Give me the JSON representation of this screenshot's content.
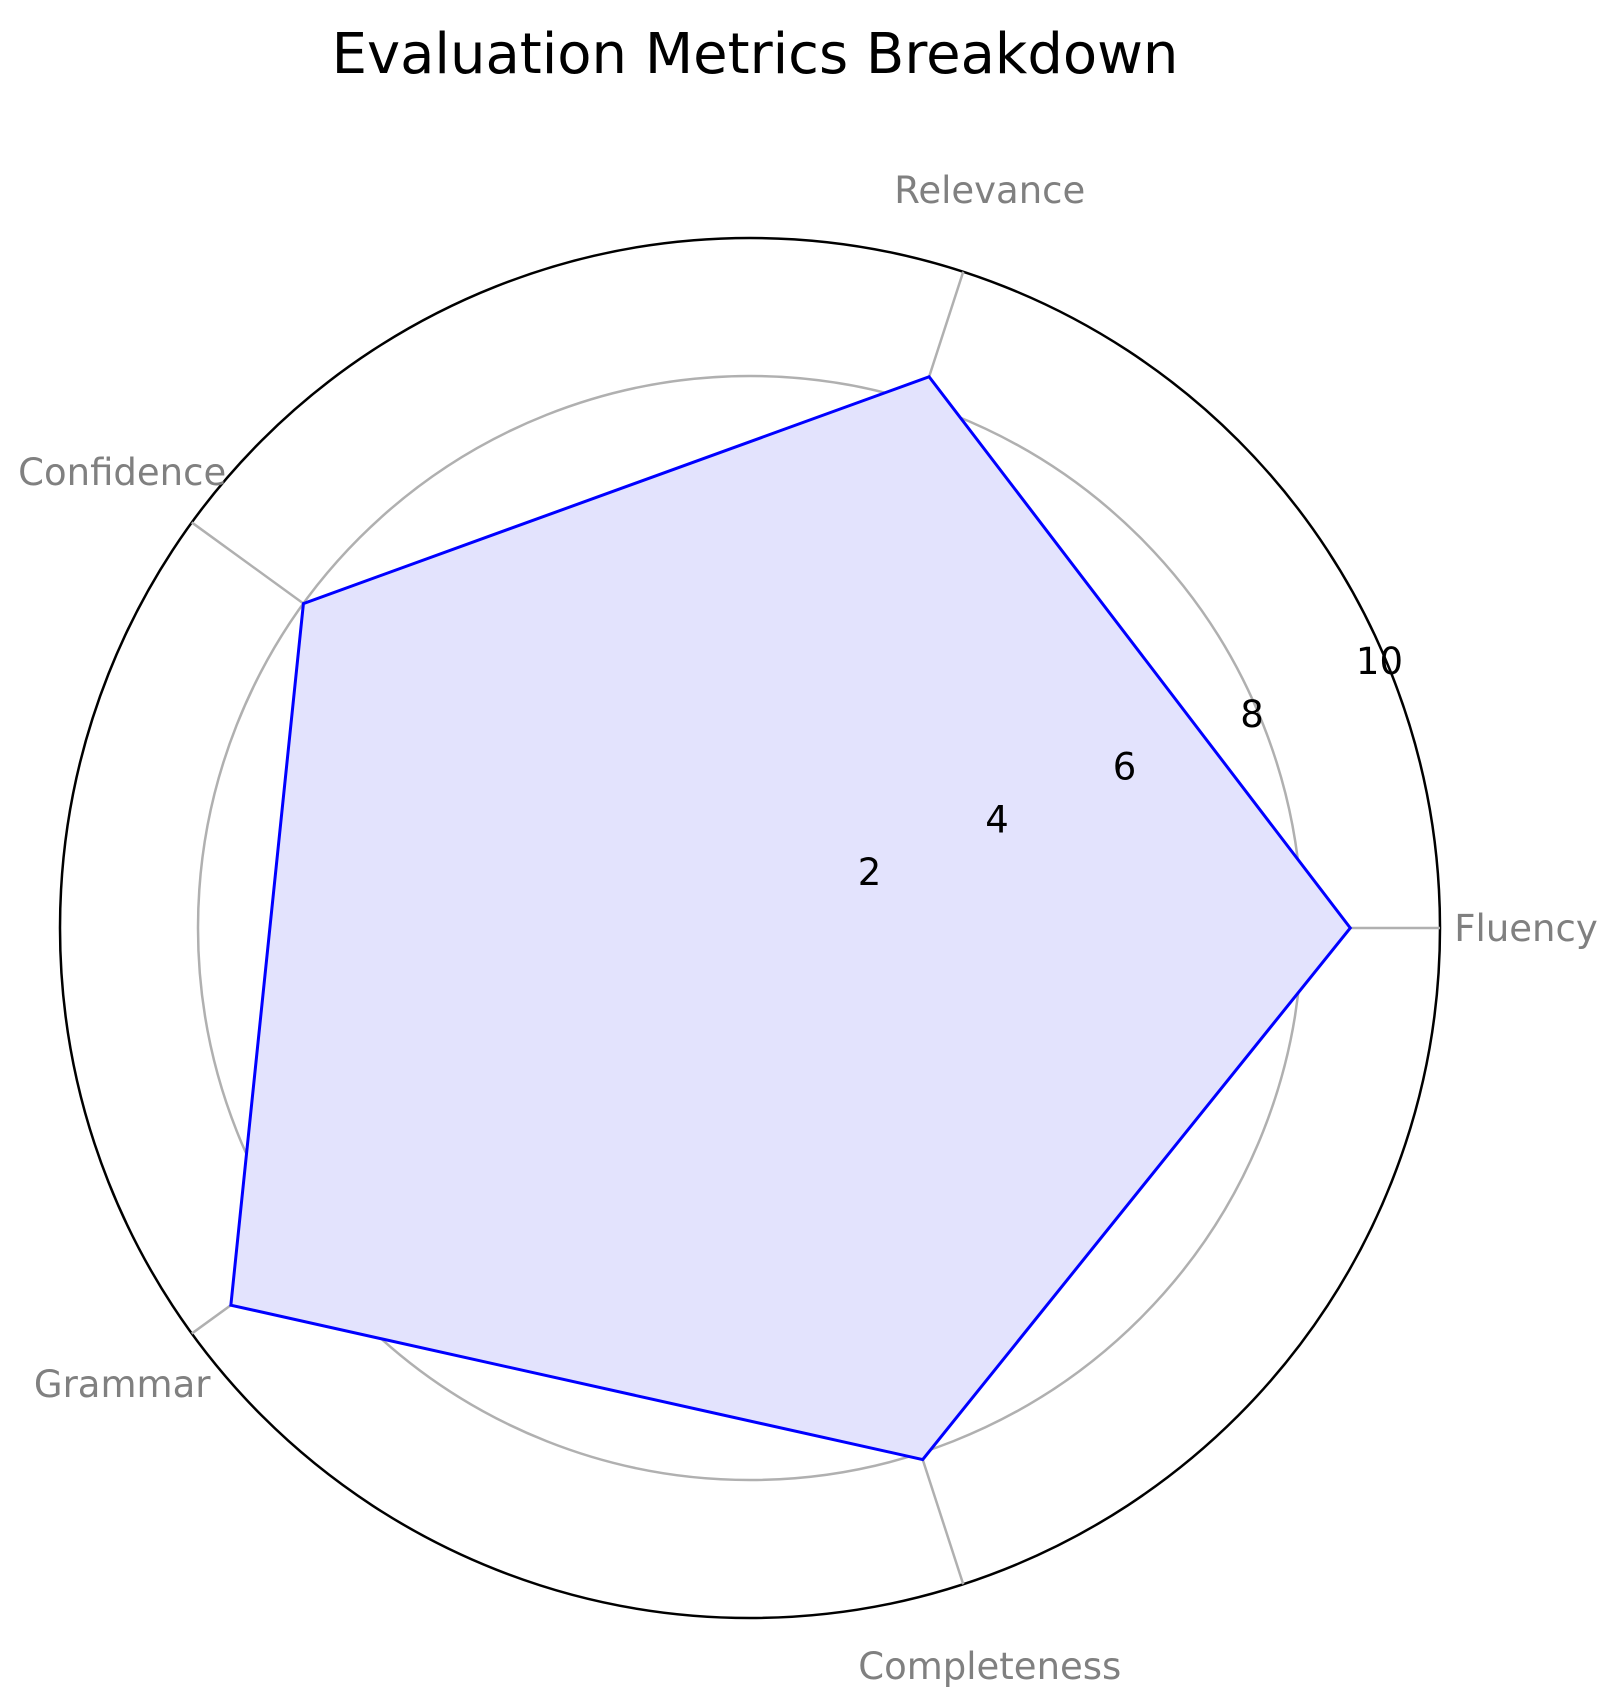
{
  "chart_data": {
    "type": "radar",
    "title": "Evaluation Metrics Breakdown",
    "categories": [
      "Fluency",
      "Relevance",
      "Confidence",
      "Grammar",
      "Completeness"
    ],
    "series": [
      {
        "values": [
          8.7,
          8.4,
          8.0,
          9.3,
          8.1
        ]
      }
    ],
    "rlim": [
      0,
      10
    ],
    "r_ticks": [
      2,
      4,
      6,
      8,
      10
    ],
    "grid": true,
    "colors": {
      "line": "#0000ff",
      "fill": "#e3e3fd",
      "grid": "#b0b0b0",
      "axis_label": "#808080",
      "frame": "#000000"
    }
  }
}
